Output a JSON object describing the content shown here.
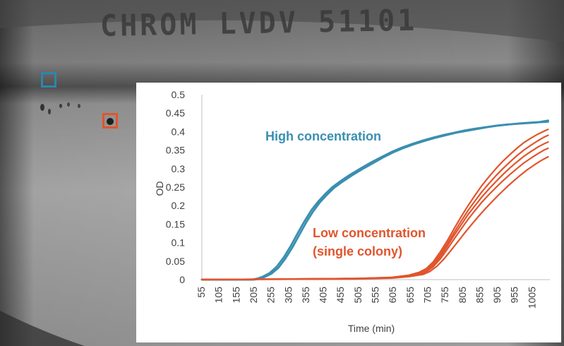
{
  "background": {
    "plate_label": "CHROM LVDV 51101"
  },
  "markers": [
    {
      "name": "high-concentration-marker",
      "color": "#2e86ab"
    },
    {
      "name": "low-concentration-marker",
      "color": "#e0552d"
    }
  ],
  "colors": {
    "high": "#3a8fb0",
    "low": "#e0552d",
    "axis": "#bfbfbf",
    "text": "#404040"
  },
  "chart_data": {
    "type": "line",
    "xlabel": "Time (min)",
    "ylabel": "OD",
    "xlim": [
      55,
      1055
    ],
    "ylim": [
      0,
      0.5
    ],
    "yticks": [
      "0",
      "0.05",
      "0.1",
      "0.15",
      "0.2",
      "0.25",
      "0.3",
      "0.35",
      "0.4",
      "0.45",
      "0.5"
    ],
    "xticks": [
      "55",
      "105",
      "155",
      "205",
      "255",
      "305",
      "355",
      "405",
      "455",
      "505",
      "555",
      "605",
      "655",
      "705",
      "755",
      "805",
      "855",
      "905",
      "955",
      "1005"
    ],
    "grid": false,
    "annotations": {
      "high": "High concentration",
      "low_line1": "Low concentration",
      "low_line2": "(single colony)"
    },
    "series": [
      {
        "group": "high",
        "x": [
          55,
          200,
          215,
          230,
          250,
          270,
          290,
          310,
          330,
          350,
          370,
          390,
          410,
          430,
          450,
          480,
          510,
          540,
          570,
          600,
          630,
          660,
          690,
          720,
          750,
          780,
          810,
          840,
          870,
          900,
          930,
          960,
          990,
          1020,
          1050
        ],
        "y": [
          0,
          0,
          0.003,
          0.008,
          0.018,
          0.035,
          0.06,
          0.09,
          0.125,
          0.158,
          0.188,
          0.212,
          0.232,
          0.25,
          0.264,
          0.283,
          0.3,
          0.316,
          0.331,
          0.345,
          0.357,
          0.367,
          0.376,
          0.384,
          0.391,
          0.397,
          0.403,
          0.408,
          0.412,
          0.416,
          0.419,
          0.421,
          0.423,
          0.425,
          0.427
        ]
      },
      {
        "group": "high",
        "x": [
          55,
          205,
          220,
          235,
          255,
          275,
          295,
          315,
          335,
          355,
          375,
          395,
          415,
          435,
          455,
          485,
          515,
          545,
          575,
          605,
          635,
          665,
          695,
          725,
          755,
          785,
          815,
          845,
          875,
          905,
          935,
          965,
          995,
          1025,
          1050
        ],
        "y": [
          0,
          0,
          0.002,
          0.007,
          0.016,
          0.032,
          0.057,
          0.087,
          0.121,
          0.155,
          0.185,
          0.21,
          0.23,
          0.248,
          0.262,
          0.281,
          0.298,
          0.314,
          0.33,
          0.344,
          0.356,
          0.366,
          0.375,
          0.383,
          0.39,
          0.397,
          0.402,
          0.407,
          0.412,
          0.416,
          0.419,
          0.422,
          0.424,
          0.426,
          0.43
        ]
      },
      {
        "group": "low",
        "x": [
          55,
          500,
          600,
          650,
          680,
          700,
          720,
          740,
          760,
          780,
          800,
          820,
          840,
          860,
          880,
          900,
          920,
          940,
          960,
          980,
          1000,
          1020,
          1040,
          1050
        ],
        "y": [
          0,
          0.003,
          0.006,
          0.012,
          0.02,
          0.03,
          0.048,
          0.075,
          0.105,
          0.138,
          0.17,
          0.2,
          0.228,
          0.255,
          0.278,
          0.3,
          0.32,
          0.338,
          0.355,
          0.37,
          0.382,
          0.393,
          0.402,
          0.406
        ]
      },
      {
        "group": "low",
        "x": [
          55,
          500,
          600,
          650,
          680,
          700,
          720,
          740,
          760,
          780,
          800,
          820,
          840,
          860,
          880,
          900,
          920,
          940,
          960,
          980,
          1000,
          1020,
          1040,
          1050
        ],
        "y": [
          0,
          0.003,
          0.006,
          0.011,
          0.018,
          0.027,
          0.043,
          0.068,
          0.097,
          0.128,
          0.158,
          0.187,
          0.213,
          0.238,
          0.26,
          0.281,
          0.3,
          0.318,
          0.335,
          0.35,
          0.363,
          0.375,
          0.386,
          0.39
        ]
      },
      {
        "group": "low",
        "x": [
          55,
          500,
          600,
          650,
          680,
          700,
          720,
          740,
          760,
          780,
          800,
          820,
          840,
          860,
          880,
          900,
          920,
          940,
          960,
          980,
          1000,
          1020,
          1040,
          1050
        ],
        "y": [
          0,
          0.003,
          0.005,
          0.01,
          0.016,
          0.024,
          0.039,
          0.062,
          0.09,
          0.12,
          0.148,
          0.176,
          0.2,
          0.224,
          0.245,
          0.265,
          0.284,
          0.302,
          0.318,
          0.333,
          0.346,
          0.358,
          0.368,
          0.372
        ]
      },
      {
        "group": "low",
        "x": [
          55,
          500,
          600,
          650,
          680,
          700,
          720,
          740,
          760,
          780,
          800,
          820,
          840,
          860,
          880,
          900,
          920,
          940,
          960,
          980,
          1000,
          1020,
          1040,
          1050
        ],
        "y": [
          0,
          0.002,
          0.005,
          0.009,
          0.014,
          0.021,
          0.035,
          0.056,
          0.082,
          0.11,
          0.137,
          0.163,
          0.187,
          0.21,
          0.23,
          0.249,
          0.267,
          0.284,
          0.3,
          0.315,
          0.328,
          0.34,
          0.351,
          0.355
        ]
      },
      {
        "group": "low",
        "x": [
          55,
          500,
          600,
          650,
          690,
          710,
          730,
          750,
          770,
          790,
          810,
          830,
          850,
          870,
          890,
          910,
          930,
          950,
          970,
          990,
          1010,
          1030,
          1050
        ],
        "y": [
          0,
          0.002,
          0.004,
          0.008,
          0.014,
          0.022,
          0.036,
          0.055,
          0.078,
          0.102,
          0.126,
          0.149,
          0.171,
          0.192,
          0.212,
          0.231,
          0.249,
          0.266,
          0.282,
          0.297,
          0.31,
          0.322,
          0.332
        ]
      }
    ]
  }
}
